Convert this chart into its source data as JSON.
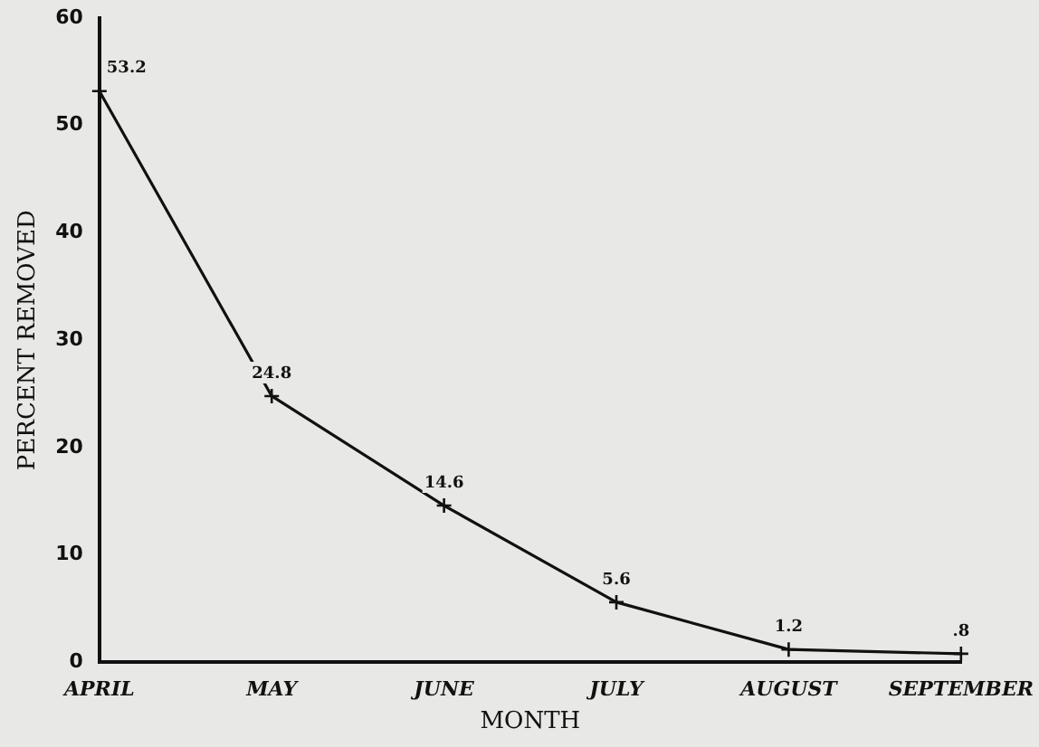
{
  "chart_data": {
    "type": "line",
    "xlabel": "MONTH",
    "ylabel": "PERCENT REMOVED",
    "categories": [
      "APRIL",
      "MAY",
      "JUNE",
      "JULY",
      "AUGUST",
      "SEPTEMBER"
    ],
    "series": [
      {
        "color": "#111111",
        "values": [
          53.2,
          24.8,
          14.6,
          5.6,
          1.2,
          0.8
        ],
        "value_labels": [
          "53.2",
          "24.8",
          "14.6",
          "5.6",
          "1.2",
          ".8"
        ]
      }
    ],
    "ylim": [
      0,
      60
    ],
    "yticks": [
      0,
      10,
      20,
      30,
      40,
      50,
      60
    ],
    "grid": false,
    "legend": false,
    "marker": "cross",
    "line_style": "solid"
  }
}
